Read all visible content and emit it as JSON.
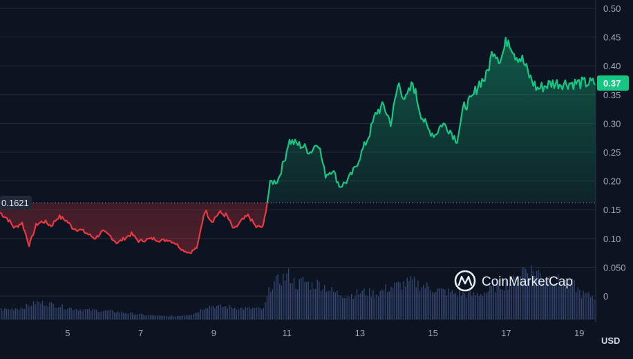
{
  "chart_data": {
    "type": "area",
    "currency_label": "USD",
    "watermark": "CoinMarketCap",
    "x_ticks": [
      "5",
      "7",
      "9",
      "11",
      "13",
      "15",
      "17",
      "19"
    ],
    "x_tick_values": [
      5,
      7,
      9,
      11,
      13,
      15,
      17,
      19
    ],
    "y_ticks": [
      "0.50",
      "0.45",
      "0.40",
      "0.35",
      "0.30",
      "0.25",
      "0.20",
      "0.15",
      "0.10",
      "0.050",
      "0"
    ],
    "y_tick_values": [
      0.5,
      0.45,
      0.4,
      0.35,
      0.3,
      0.25,
      0.2,
      0.15,
      0.1,
      0.05,
      0
    ],
    "ylim": [
      0,
      0.5
    ],
    "xlim": [
      3.15,
      19.45
    ],
    "grid": true,
    "reference_price": 0.1621,
    "reference_label": "0.1621",
    "current_price": 0.37,
    "current_label": "0.37",
    "colors": {
      "up": "#16c784",
      "down": "#ea3943",
      "background": "#0d1421",
      "grid": "#222a3a",
      "volume": "#3a4a78"
    },
    "series": {
      "x": [
        3.15,
        3.35,
        3.55,
        3.75,
        3.95,
        4.15,
        4.35,
        4.55,
        4.75,
        4.95,
        5.15,
        5.35,
        5.55,
        5.75,
        5.95,
        6.15,
        6.35,
        6.55,
        6.75,
        6.95,
        7.15,
        7.35,
        7.55,
        7.75,
        7.95,
        8.15,
        8.35,
        8.55,
        8.75,
        8.95,
        9.15,
        9.35,
        9.55,
        9.75,
        9.95,
        10.15,
        10.35,
        10.55,
        10.75,
        10.95,
        11.05,
        11.25,
        11.45,
        11.65,
        11.85,
        12.05,
        12.25,
        12.45,
        12.65,
        12.85,
        13.05,
        13.25,
        13.45,
        13.65,
        13.85,
        14.05,
        14.25,
        14.45,
        14.65,
        14.85,
        15.05,
        15.25,
        15.45,
        15.65,
        15.85,
        16.05,
        16.25,
        16.45,
        16.65,
        16.85,
        17.05,
        17.25,
        17.45,
        17.65,
        17.85,
        18.05,
        18.25,
        18.45,
        18.65,
        18.85,
        19.05,
        19.25,
        19.45
      ],
      "price": [
        0.145,
        0.135,
        0.118,
        0.128,
        0.088,
        0.125,
        0.13,
        0.122,
        0.138,
        0.132,
        0.118,
        0.115,
        0.108,
        0.1,
        0.112,
        0.105,
        0.092,
        0.1,
        0.108,
        0.095,
        0.098,
        0.1,
        0.096,
        0.098,
        0.092,
        0.08,
        0.075,
        0.085,
        0.15,
        0.13,
        0.145,
        0.14,
        0.115,
        0.13,
        0.14,
        0.12,
        0.12,
        0.198,
        0.2,
        0.24,
        0.27,
        0.265,
        0.26,
        0.25,
        0.27,
        0.21,
        0.22,
        0.19,
        0.2,
        0.22,
        0.25,
        0.28,
        0.32,
        0.33,
        0.3,
        0.37,
        0.34,
        0.37,
        0.32,
        0.29,
        0.28,
        0.3,
        0.29,
        0.27,
        0.33,
        0.34,
        0.37,
        0.38,
        0.43,
        0.41,
        0.45,
        0.42,
        0.41,
        0.38,
        0.36,
        0.365,
        0.37,
        0.37,
        0.37,
        0.37,
        0.37,
        0.37,
        0.37
      ],
      "volume": [
        0.012,
        0.012,
        0.013,
        0.014,
        0.017,
        0.02,
        0.019,
        0.018,
        0.016,
        0.014,
        0.013,
        0.012,
        0.011,
        0.011,
        0.01,
        0.01,
        0.009,
        0.008,
        0.007,
        0.006,
        0.005,
        0.005,
        0.004,
        0.004,
        0.004,
        0.005,
        0.006,
        0.009,
        0.015,
        0.016,
        0.015,
        0.015,
        0.014,
        0.013,
        0.013,
        0.013,
        0.012,
        0.04,
        0.045,
        0.05,
        0.052,
        0.04,
        0.045,
        0.04,
        0.042,
        0.038,
        0.032,
        0.03,
        0.028,
        0.03,
        0.032,
        0.031,
        0.03,
        0.035,
        0.038,
        0.04,
        0.042,
        0.044,
        0.04,
        0.038,
        0.035,
        0.033,
        0.032,
        0.03,
        0.03,
        0.028,
        0.03,
        0.032,
        0.038,
        0.04,
        0.042,
        0.046,
        0.06,
        0.058,
        0.055,
        0.05,
        0.048,
        0.045,
        0.042,
        0.04,
        0.03,
        0.028,
        0.026
      ]
    }
  }
}
